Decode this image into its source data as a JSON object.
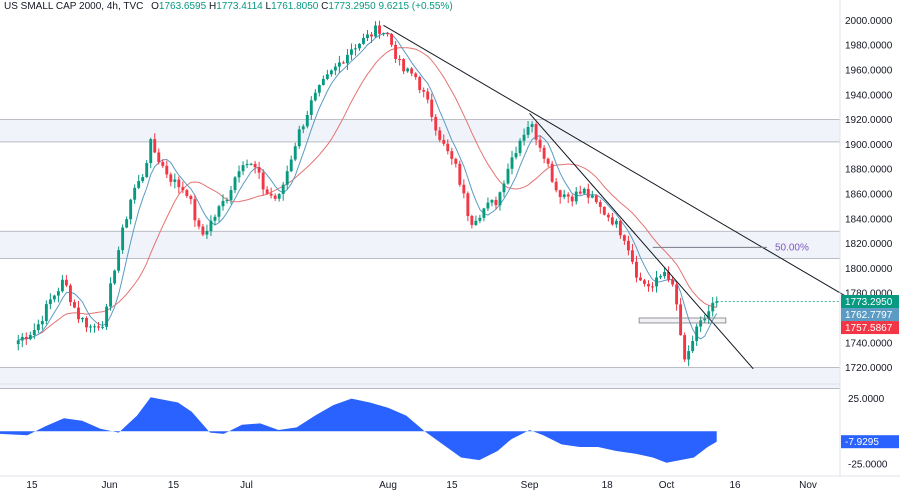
{
  "header": {
    "symbol": "US SMALL CAP 2000, 4h, TVC",
    "open_label": "O",
    "open": "1763.6595",
    "high_label": "H",
    "high": "1773.4114",
    "low_label": "L",
    "low": "1761.8050",
    "close_label": "C",
    "close": "1773.2950",
    "change": "9.6215 (+0.55%)"
  },
  "colors": {
    "up": "#089981",
    "down": "#f23645",
    "ma_fast": "#5b9bc4",
    "ma_slow": "#e57373",
    "histogram": "#2962ff",
    "zone": "#f0f3fa",
    "zone_border": "#9598a1",
    "trend": "#131722"
  },
  "chart_data": [
    {
      "type": "candlestick",
      "instrument": "US SMALL CAP 2000",
      "interval": "4h",
      "ylim": [
        1705,
        2005
      ],
      "y_ticks": [
        "2000.0000",
        "1980.0000",
        "1960.0000",
        "1940.0000",
        "1920.0000",
        "1900.0000",
        "1880.0000",
        "1860.0000",
        "1840.0000",
        "1820.0000",
        "1800.0000",
        "1780.0000",
        "1760.0000",
        "1740.0000",
        "1720.0000"
      ],
      "x_ticks": [
        "15",
        "Jun",
        "15",
        "Jul",
        "Aug",
        "15",
        "Sep",
        "18",
        "Oct",
        "16",
        "Nov"
      ],
      "close_path": [
        [
          "2023-05-12",
          1742
        ],
        [
          "2023-05-16",
          1752
        ],
        [
          "2023-05-19",
          1774
        ],
        [
          "2023-05-22",
          1790
        ],
        [
          "2023-05-25",
          1762
        ],
        [
          "2023-05-28",
          1752
        ],
        [
          "2023-05-31",
          1758
        ],
        [
          "2023-06-02",
          1800
        ],
        [
          "2023-06-06",
          1862
        ],
        [
          "2023-06-08",
          1872
        ],
        [
          "2023-06-10",
          1900
        ],
        [
          "2023-06-13",
          1880
        ],
        [
          "2023-06-15",
          1870
        ],
        [
          "2023-06-18",
          1862
        ],
        [
          "2023-06-21",
          1825
        ],
        [
          "2023-06-24",
          1842
        ],
        [
          "2023-06-27",
          1860
        ],
        [
          "2023-06-30",
          1888
        ],
        [
          "2023-07-03",
          1880
        ],
        [
          "2023-07-05",
          1862
        ],
        [
          "2023-07-08",
          1855
        ],
        [
          "2023-07-12",
          1905
        ],
        [
          "2023-07-15",
          1932
        ],
        [
          "2023-07-18",
          1950
        ],
        [
          "2023-07-21",
          1964
        ],
        [
          "2023-07-24",
          1978
        ],
        [
          "2023-07-27",
          1985
        ],
        [
          "2023-07-30",
          1994
        ],
        [
          "2023-08-01",
          1988
        ],
        [
          "2023-08-04",
          1960
        ],
        [
          "2023-08-07",
          1955
        ],
        [
          "2023-08-10",
          1930
        ],
        [
          "2023-08-13",
          1900
        ],
        [
          "2023-08-16",
          1880
        ],
        [
          "2023-08-19",
          1838
        ],
        [
          "2023-08-22",
          1848
        ],
        [
          "2023-08-25",
          1855
        ],
        [
          "2023-08-27",
          1880
        ],
        [
          "2023-08-30",
          1905
        ],
        [
          "2023-09-01",
          1918
        ],
        [
          "2023-09-04",
          1895
        ],
        [
          "2023-09-07",
          1862
        ],
        [
          "2023-09-10",
          1858
        ],
        [
          "2023-09-13",
          1862
        ],
        [
          "2023-09-16",
          1850
        ],
        [
          "2023-09-19",
          1840
        ],
        [
          "2023-09-22",
          1825
        ],
        [
          "2023-09-25",
          1790
        ],
        [
          "2023-09-28",
          1785
        ],
        [
          "2023-10-01",
          1800
        ],
        [
          "2023-10-03",
          1775
        ],
        [
          "2023-10-05",
          1722
        ],
        [
          "2023-10-07",
          1745
        ],
        [
          "2023-10-09",
          1758
        ],
        [
          "2023-10-11",
          1770
        ],
        [
          "2023-10-12",
          1773.295
        ]
      ],
      "last_price_tags": [
        {
          "label": "1773.2950",
          "value": 1773.295,
          "color": "#089981"
        },
        {
          "label": "1762.7797",
          "value": 1762.78,
          "color": "#5b9bc4"
        },
        {
          "label": "1757.5867",
          "value": 1757.59,
          "color": "#f23645"
        }
      ],
      "zones": [
        {
          "from": 1902,
          "to": 1920
        },
        {
          "from": 1808,
          "to": 1830
        },
        {
          "from": 1703,
          "to": 1720
        }
      ],
      "trendlines": [
        {
          "from": [
            "2023-07-31",
            1996
          ],
          "to": [
            "2023-11-10",
            1776
          ]
        },
        {
          "from": [
            "2023-09-01",
            1925
          ],
          "to": [
            "2023-10-20",
            1719
          ]
        }
      ],
      "fib_level": {
        "label": "50.00%",
        "value": 1817,
        "from": "2023-09-28",
        "to": "2023-10-23"
      },
      "consolidation_box": {
        "from_date": "2023-09-25",
        "to_date": "2023-10-14",
        "low": 1756,
        "high": 1760
      }
    },
    {
      "type": "area",
      "indicator": "oscillator",
      "ylim": [
        -28,
        30
      ],
      "y_ticks": [
        "25.0000",
        "-25.0000"
      ],
      "last_value_label": "-7.9295",
      "last_value": -7.9295,
      "path": [
        [
          "2023-05-08",
          -2
        ],
        [
          "2023-05-14",
          -3
        ],
        [
          "2023-05-18",
          4
        ],
        [
          "2023-05-22",
          10
        ],
        [
          "2023-05-26",
          8
        ],
        [
          "2023-05-30",
          2
        ],
        [
          "2023-06-03",
          -1
        ],
        [
          "2023-06-07",
          12
        ],
        [
          "2023-06-10",
          26
        ],
        [
          "2023-06-13",
          24
        ],
        [
          "2023-06-16",
          22
        ],
        [
          "2023-06-19",
          15
        ],
        [
          "2023-06-23",
          -1
        ],
        [
          "2023-06-26",
          -2
        ],
        [
          "2023-06-30",
          5
        ],
        [
          "2023-07-04",
          6
        ],
        [
          "2023-07-08",
          1
        ],
        [
          "2023-07-12",
          3
        ],
        [
          "2023-07-16",
          12
        ],
        [
          "2023-07-20",
          20
        ],
        [
          "2023-07-24",
          25
        ],
        [
          "2023-07-28",
          22
        ],
        [
          "2023-08-01",
          18
        ],
        [
          "2023-08-05",
          12
        ],
        [
          "2023-08-09",
          0
        ],
        [
          "2023-08-13",
          -10
        ],
        [
          "2023-08-17",
          -20
        ],
        [
          "2023-08-21",
          -22
        ],
        [
          "2023-08-25",
          -15
        ],
        [
          "2023-08-28",
          -6
        ],
        [
          "2023-09-01",
          1
        ],
        [
          "2023-09-04",
          -3
        ],
        [
          "2023-09-08",
          -10
        ],
        [
          "2023-09-12",
          -12
        ],
        [
          "2023-09-16",
          -12
        ],
        [
          "2023-09-20",
          -15
        ],
        [
          "2023-09-24",
          -17
        ],
        [
          "2023-09-28",
          -20
        ],
        [
          "2023-10-01",
          -24
        ],
        [
          "2023-10-04",
          -22
        ],
        [
          "2023-10-07",
          -20
        ],
        [
          "2023-10-10",
          -12
        ],
        [
          "2023-10-12",
          -7.9295
        ]
      ]
    }
  ]
}
